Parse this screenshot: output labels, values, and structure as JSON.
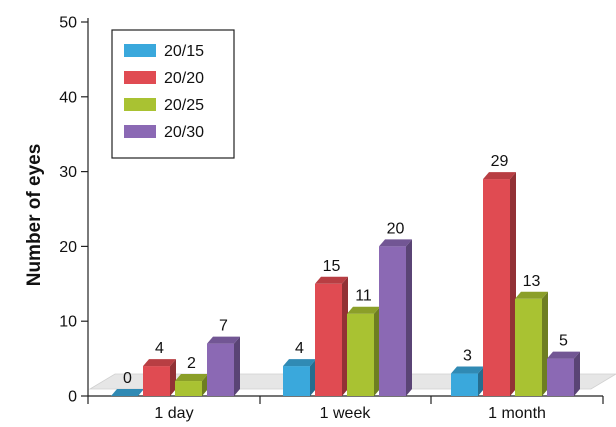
{
  "chart_data": {
    "type": "bar",
    "title": "",
    "xlabel": "",
    "ylabel": "Number of eyes",
    "categories": [
      "1 day",
      "1 week",
      "1 month"
    ],
    "ylim": [
      0,
      50
    ],
    "yticks": [
      0,
      10,
      20,
      30,
      40,
      50
    ],
    "grid": false,
    "legend": "top-left",
    "style": "3d",
    "series": [
      {
        "name": "20/15",
        "color": "#3aa8dc",
        "values": [
          0,
          4,
          3
        ]
      },
      {
        "name": "20/20",
        "color": "#e04b52",
        "values": [
          4,
          15,
          29
        ]
      },
      {
        "name": "20/25",
        "color": "#a9c232",
        "values": [
          2,
          11,
          13
        ]
      },
      {
        "name": "20/30",
        "color": "#8b69b4",
        "values": [
          7,
          20,
          5
        ]
      }
    ]
  }
}
